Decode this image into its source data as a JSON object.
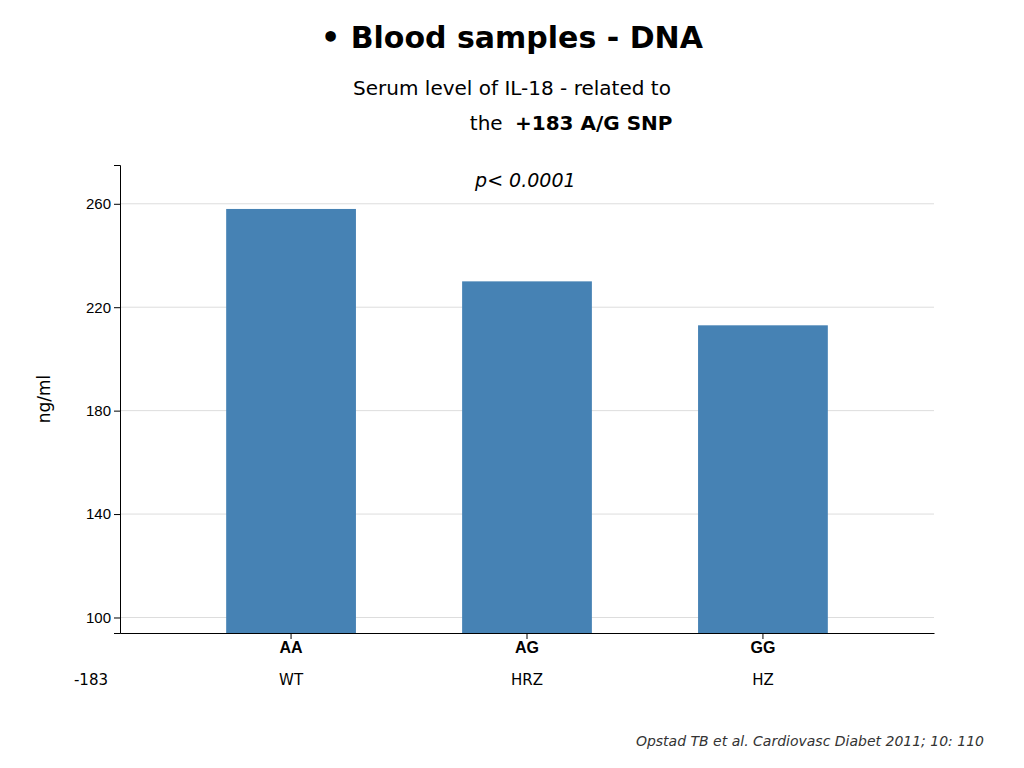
{
  "chart_data": {
    "type": "bar",
    "title": "• Blood samples - DNA",
    "subtitle": [
      "Serum level of IL-18  - related to",
      "the ",
      "+183 A/G SNP"
    ],
    "ylabel": "ng/ml",
    "annotation": "p< 0.0001",
    "categories": [
      "AA",
      "AG",
      "GG"
    ],
    "sublabels": [
      "WT",
      "HRZ",
      "HZ"
    ],
    "sublabel_title": "-183",
    "values": [
      258,
      230,
      213
    ],
    "ylim": [
      94,
      275
    ],
    "yticks": [
      100,
      140,
      180,
      220,
      260
    ],
    "grid": true,
    "footer": "Opstad TB et al. Cardiovasc Diabet 2011; 10: 110"
  }
}
